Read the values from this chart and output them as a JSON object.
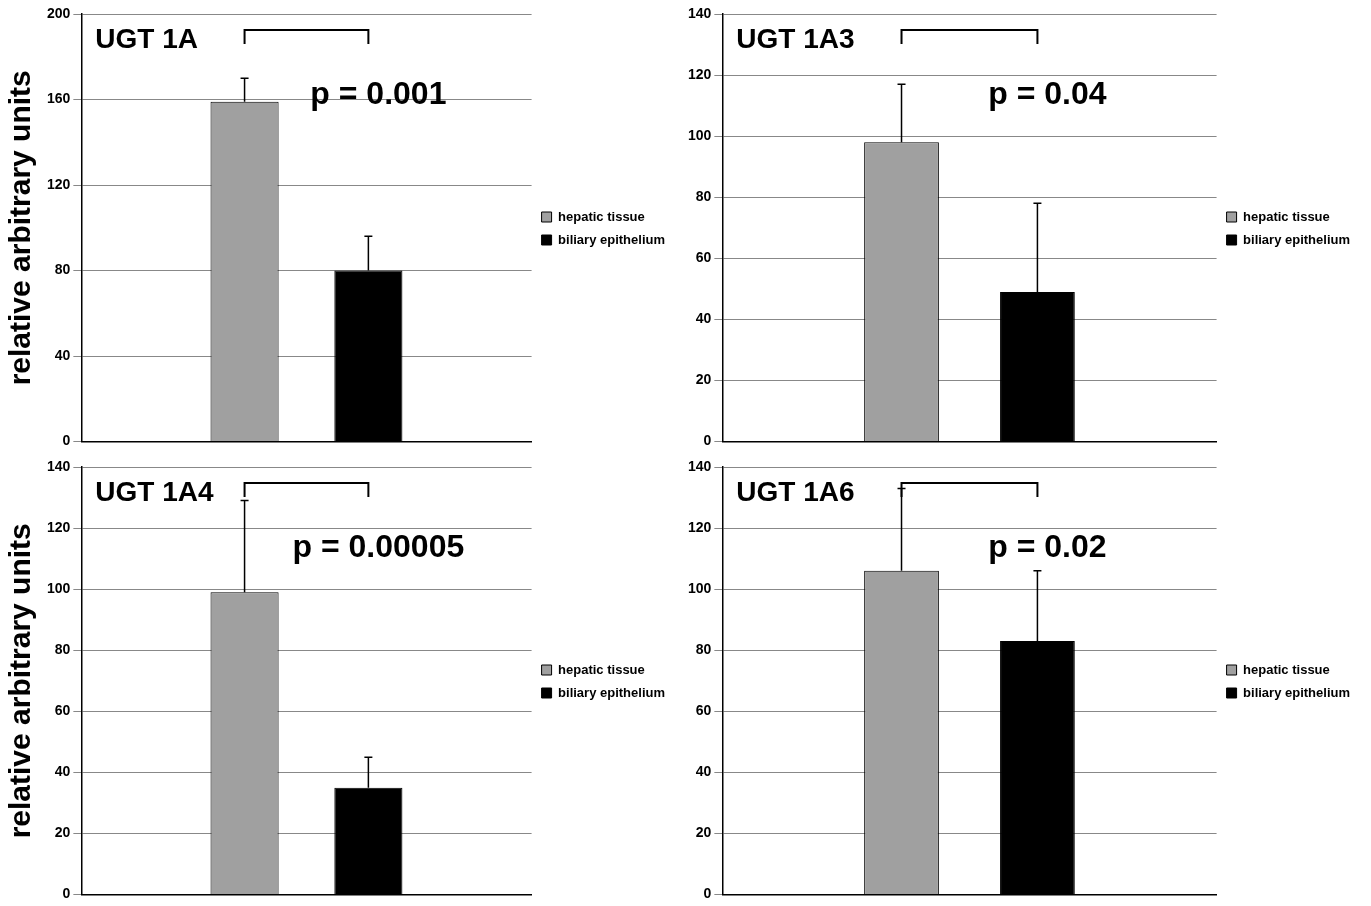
{
  "chart_data": [
    {
      "type": "bar",
      "title": "UGT 1A",
      "ylabel": "relative arbitrary units",
      "categories": [
        null
      ],
      "series": [
        {
          "name": "hepatic tissue",
          "color": "#a0a0a0",
          "values": [
            159
          ],
          "errors": [
            [
              159,
              170
            ]
          ]
        },
        {
          "name": "biliary epithelium",
          "color": "#000000",
          "values": [
            80
          ],
          "errors": [
            [
              80,
              96
            ]
          ]
        }
      ],
      "ylim": [
        0,
        200
      ],
      "yticks": [
        0,
        40,
        80,
        120,
        160,
        200
      ],
      "grid": "y",
      "legend": "right",
      "annotations": [
        "p = 0.001"
      ]
    },
    {
      "type": "bar",
      "title": "UGT 1A3",
      "categories": [
        null
      ],
      "series": [
        {
          "name": "hepatic tissue",
          "color": "#a0a0a0",
          "values": [
            98
          ],
          "errors": [
            [
              98,
              117
            ]
          ]
        },
        {
          "name": "biliary epithelium",
          "color": "#000000",
          "values": [
            49
          ],
          "errors": [
            [
              49,
              78
            ]
          ]
        }
      ],
      "ylim": [
        0,
        140
      ],
      "yticks": [
        0,
        20,
        40,
        60,
        80,
        100,
        120,
        140
      ],
      "grid": "y",
      "legend": "right",
      "annotations": [
        "p = 0.04"
      ]
    },
    {
      "type": "bar",
      "title": "UGT 1A4",
      "ylabel": "relative arbitrary units",
      "categories": [
        null
      ],
      "series": [
        {
          "name": "hepatic tissue",
          "color": "#a0a0a0",
          "values": [
            99
          ],
          "errors": [
            [
              99,
              129
            ]
          ]
        },
        {
          "name": "biliary epithelium",
          "color": "#000000",
          "values": [
            35
          ],
          "errors": [
            [
              35,
              45
            ]
          ]
        }
      ],
      "ylim": [
        0,
        140
      ],
      "yticks": [
        0,
        20,
        40,
        60,
        80,
        100,
        120,
        140
      ],
      "grid": "y",
      "legend": "right",
      "annotations": [
        "p = 0.00005"
      ]
    },
    {
      "type": "bar",
      "title": "UGT 1A6",
      "categories": [
        null
      ],
      "series": [
        {
          "name": "hepatic tissue",
          "color": "#a0a0a0",
          "values": [
            106
          ],
          "errors": [
            [
              106,
              133
            ]
          ]
        },
        {
          "name": "biliary epithelium",
          "color": "#000000",
          "values": [
            83
          ],
          "errors": [
            [
              83,
              106
            ]
          ]
        }
      ],
      "ylim": [
        0,
        140
      ],
      "yticks": [
        0,
        20,
        40,
        60,
        80,
        100,
        120,
        140
      ],
      "grid": "y",
      "legend": "right",
      "annotations": [
        "p = 0.02"
      ]
    }
  ]
}
